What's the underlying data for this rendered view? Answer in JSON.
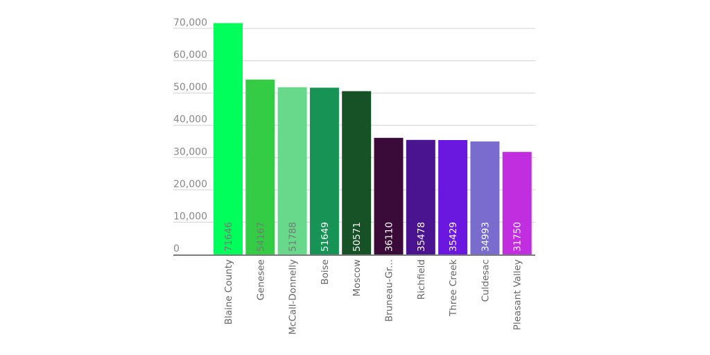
{
  "chart_data": {
    "type": "bar",
    "title": "",
    "xlabel": "",
    "ylabel": "",
    "ylim": [
      0,
      72000
    ],
    "yticks": [
      0,
      10000,
      20000,
      30000,
      40000,
      50000,
      60000,
      70000
    ],
    "ytick_labels": [
      "0",
      "10,000",
      "20,000",
      "30,000",
      "40,000",
      "50,000",
      "60,000",
      "70,000"
    ],
    "grid": true,
    "legend": "none",
    "categories": [
      "Blaine County",
      "Genesee",
      "McCall-Donnelly",
      "Boise",
      "Moscow",
      "Bruneau-Gr...",
      "Richfield",
      "Three Creek",
      "Culdesac",
      "Pleasant Valley"
    ],
    "values": [
      71646,
      54167,
      51788,
      51649,
      50571,
      36110,
      35478,
      35429,
      34993,
      31750
    ],
    "value_labels": [
      "71646",
      "54167",
      "51788",
      "51649",
      "50571",
      "36110",
      "35478",
      "35429",
      "34993",
      "31750"
    ],
    "colors": [
      "#00ff5a",
      "#33cc44",
      "#68d88a",
      "#179455",
      "#175227",
      "#3a0a38",
      "#4a1490",
      "#6a18e0",
      "#7a6ccf",
      "#c02ee0"
    ],
    "value_label_colors": [
      "#777777",
      "#777777",
      "#777777",
      "#ffffff",
      "#ffffff",
      "#ffffff",
      "#ffffff",
      "#ffffff",
      "#ffffff",
      "#ffffff"
    ]
  }
}
